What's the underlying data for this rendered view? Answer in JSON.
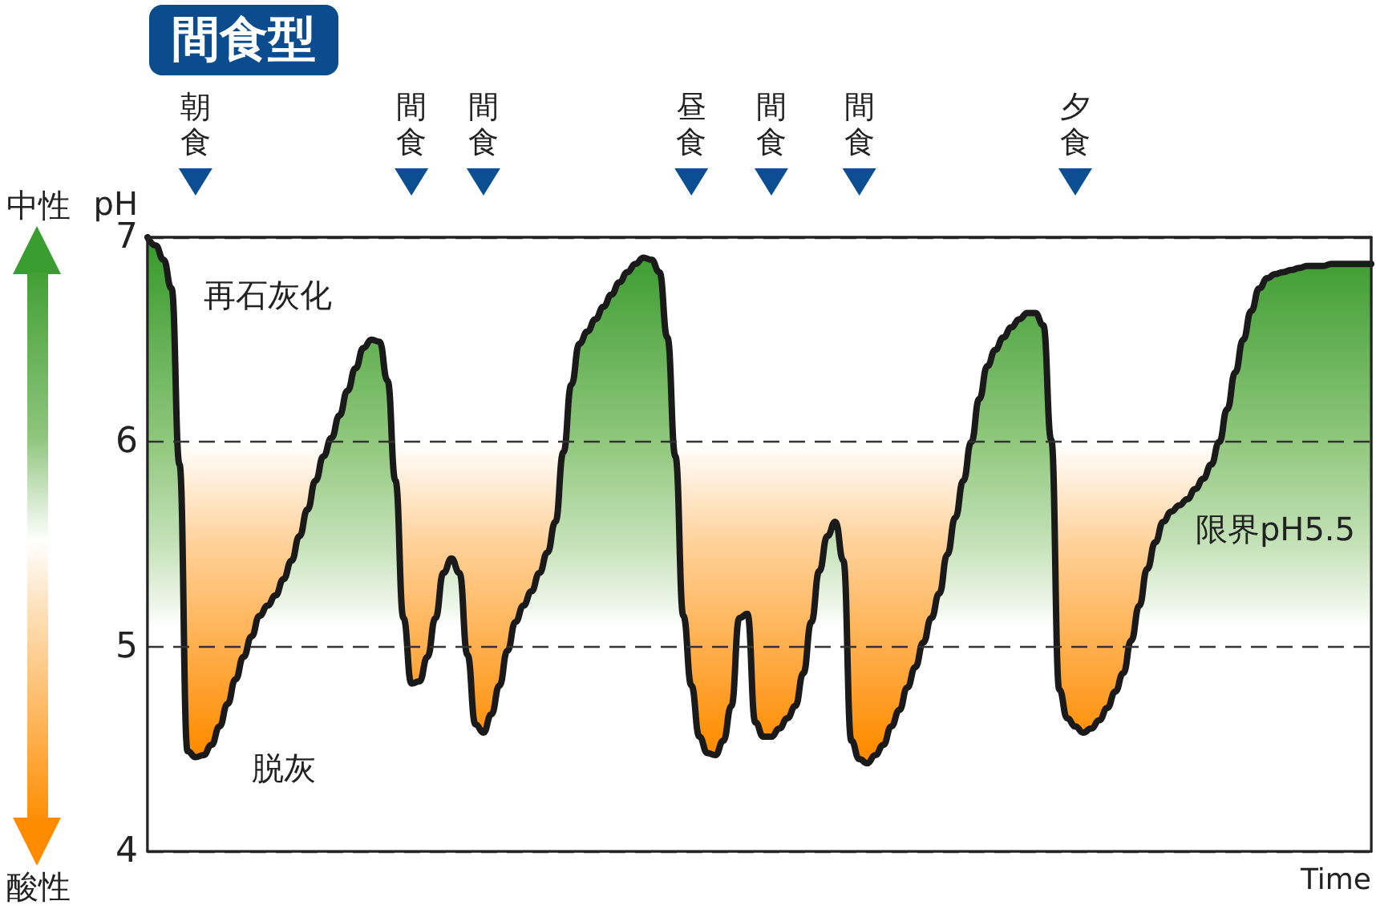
{
  "chart_data": {
    "type": "area",
    "title": "間食型",
    "xlabel": "Time",
    "ylabel": "pH",
    "categories": [
      null,
      null,
      null,
      null,
      null,
      null,
      "朝食",
      null,
      null,
      null,
      null,
      null,
      null,
      null,
      null,
      null,
      null,
      null,
      null,
      null,
      null,
      null,
      null,
      null,
      null,
      null,
      null,
      null,
      null,
      null,
      null,
      null,
      null,
      "間食",
      null,
      null,
      null,
      null,
      null,
      null,
      null,
      null,
      "間食",
      null,
      null,
      null,
      null,
      null,
      null,
      null,
      null,
      null,
      null,
      null,
      null,
      null,
      null,
      null,
      null,
      null,
      null,
      null,
      null,
      null,
      null,
      null,
      null,
      null,
      "昼食",
      null,
      null,
      null,
      null,
      null,
      null,
      null,
      null,
      null,
      "間食",
      null,
      null,
      null,
      null,
      null,
      null,
      null,
      null,
      null,
      null,
      "間食",
      null,
      null,
      null,
      null,
      null,
      null,
      null,
      null,
      null,
      null,
      null,
      null,
      null,
      null,
      null,
      null,
      null,
      null,
      null,
      null,
      null,
      null,
      null,
      null,
      null,
      null,
      "夕食",
      null,
      null,
      null,
      null,
      null,
      null,
      null,
      null,
      null,
      null,
      null,
      null,
      null,
      null,
      null,
      null,
      null,
      null,
      null,
      null,
      null,
      null,
      null,
      null,
      null,
      null,
      null,
      null,
      null,
      null,
      null,
      null,
      null,
      null,
      null,
      null,
      null
    ],
    "series": [
      {
        "color": "#1a1a1a",
        "values": [
          7.0,
          6.96,
          6.89,
          6.75,
          5.89,
          4.49,
          4.46,
          4.47,
          4.52,
          4.61,
          4.72,
          4.84,
          4.95,
          5.05,
          5.15,
          5.2,
          5.25,
          5.33,
          5.42,
          5.54,
          5.67,
          5.81,
          5.93,
          6.02,
          6.13,
          6.25,
          6.36,
          6.46,
          6.5,
          6.49,
          6.3,
          5.81,
          5.14,
          4.82,
          4.83,
          4.95,
          5.14,
          5.36,
          5.43,
          5.36,
          4.96,
          4.62,
          4.58,
          4.67,
          4.81,
          4.98,
          5.12,
          5.2,
          5.27,
          5.36,
          5.46,
          5.61,
          5.95,
          6.28,
          6.48,
          6.54,
          6.6,
          6.66,
          6.72,
          6.78,
          6.83,
          6.87,
          6.9,
          6.89,
          6.83,
          6.51,
          5.93,
          5.15,
          4.81,
          4.56,
          4.48,
          4.47,
          4.54,
          4.71,
          5.14,
          5.16,
          4.63,
          4.56,
          4.56,
          4.6,
          4.65,
          4.71,
          4.87,
          5.12,
          5.37,
          5.54,
          5.61,
          5.42,
          4.54,
          4.45,
          4.43,
          4.47,
          4.52,
          4.61,
          4.69,
          4.8,
          4.9,
          5.02,
          5.14,
          5.26,
          5.45,
          5.63,
          5.81,
          6.0,
          6.21,
          6.37,
          6.45,
          6.51,
          6.56,
          6.6,
          6.63,
          6.63,
          6.57,
          6.01,
          4.79,
          4.65,
          4.61,
          4.58,
          4.6,
          4.64,
          4.7,
          4.78,
          4.87,
          5.03,
          5.2,
          5.38,
          5.51,
          5.61,
          5.66,
          5.69,
          5.72,
          5.77,
          5.82,
          5.89,
          6.0,
          6.16,
          6.34,
          6.5,
          6.64,
          6.75,
          6.8,
          6.82,
          6.83,
          6.84,
          6.85,
          6.86,
          6.86,
          6.86,
          6.87,
          6.87,
          6.87,
          6.87,
          6.87,
          6.87
        ]
      }
    ],
    "ylim": [
      4,
      7
    ],
    "yticks": [
      4,
      5,
      6,
      7
    ],
    "grid": "y",
    "marker": "none",
    "bands": [
      {
        "axis": "y",
        "from": 4,
        "to": 6,
        "color": "#ff8c00"
      }
    ],
    "annotations": [
      "中性",
      "酸性",
      "再石灰化",
      "脱灰",
      "限界pH5.5"
    ]
  }
}
